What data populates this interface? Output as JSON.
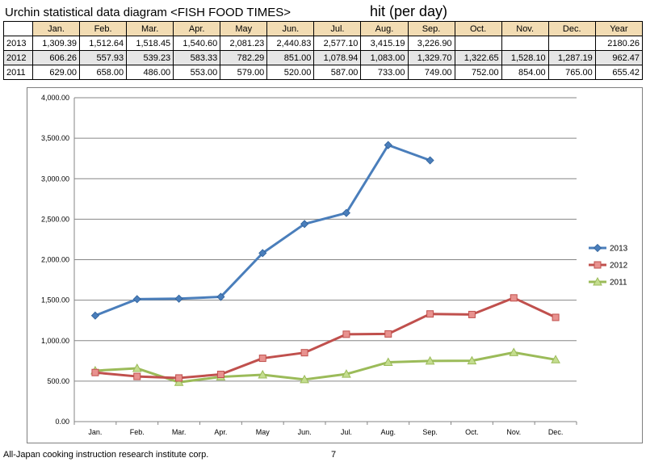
{
  "header": {
    "title": "Urchin statistical data diagram  <FISH FOOD TIMES>",
    "unit": "hit (per day)"
  },
  "table": {
    "columns": [
      "Jan.",
      "Feb.",
      "Mar.",
      "Apr.",
      "May",
      "Jun.",
      "Jul.",
      "Aug.",
      "Sep.",
      "Oct.",
      "Nov.",
      "Dec.",
      "Year"
    ],
    "rows": [
      {
        "year": "2013",
        "cells": [
          "1,309.39",
          "1,512.64",
          "1,518.45",
          "1,540.60",
          "2,081.23",
          "2,440.83",
          "2,577.10",
          "3,415.19",
          "3,226.90",
          "",
          "",
          "",
          "2180.26"
        ]
      },
      {
        "year": "2012",
        "cells": [
          "606.26",
          "557.93",
          "539.23",
          "583.33",
          "782.29",
          "851.00",
          "1,078.94",
          "1,083.00",
          "1,329.70",
          "1,322.65",
          "1,528.10",
          "1,287.19",
          "962.47"
        ]
      },
      {
        "year": "2011",
        "cells": [
          "629.00",
          "658.00",
          "486.00",
          "553.00",
          "579.00",
          "520.00",
          "587.00",
          "733.00",
          "749.00",
          "752.00",
          "854.00",
          "765.00",
          "655.42"
        ]
      }
    ]
  },
  "chart_data": {
    "type": "line",
    "categories": [
      "Jan.",
      "Feb.",
      "Mar.",
      "Apr.",
      "May",
      "Jun.",
      "Jul.",
      "Aug.",
      "Sep.",
      "Oct.",
      "Nov.",
      "Dec."
    ],
    "ylim": [
      0,
      4000
    ],
    "yticks": [
      0,
      500,
      1000,
      1500,
      2000,
      2500,
      3000,
      3500,
      4000
    ],
    "ytick_labels": [
      "0.00",
      "500.00",
      "1,000.00",
      "1,500.00",
      "2,000.00",
      "2,500.00",
      "3,000.00",
      "3,500.00",
      "4,000.00"
    ],
    "grid": true,
    "legend": "right",
    "series": [
      {
        "name": "2013",
        "color": "#4a7ebb",
        "marker": "diamond",
        "values": [
          1309.39,
          1512.64,
          1518.45,
          1540.6,
          2081.23,
          2440.83,
          2577.1,
          3415.19,
          3226.9,
          null,
          null,
          null
        ]
      },
      {
        "name": "2012",
        "color": "#c0504d",
        "marker": "square",
        "values": [
          606.26,
          557.93,
          539.23,
          583.33,
          782.29,
          851.0,
          1078.94,
          1083.0,
          1329.7,
          1322.65,
          1528.1,
          1287.19
        ]
      },
      {
        "name": "2011",
        "color": "#9bbb59",
        "marker": "triangle",
        "values": [
          629.0,
          658.0,
          486.0,
          553.0,
          579.0,
          520.0,
          587.0,
          733.0,
          749.0,
          752.0,
          854.0,
          765.0
        ]
      }
    ]
  },
  "footer": {
    "company": "All-Japan cooking instruction research institute corp.",
    "page": "7"
  }
}
